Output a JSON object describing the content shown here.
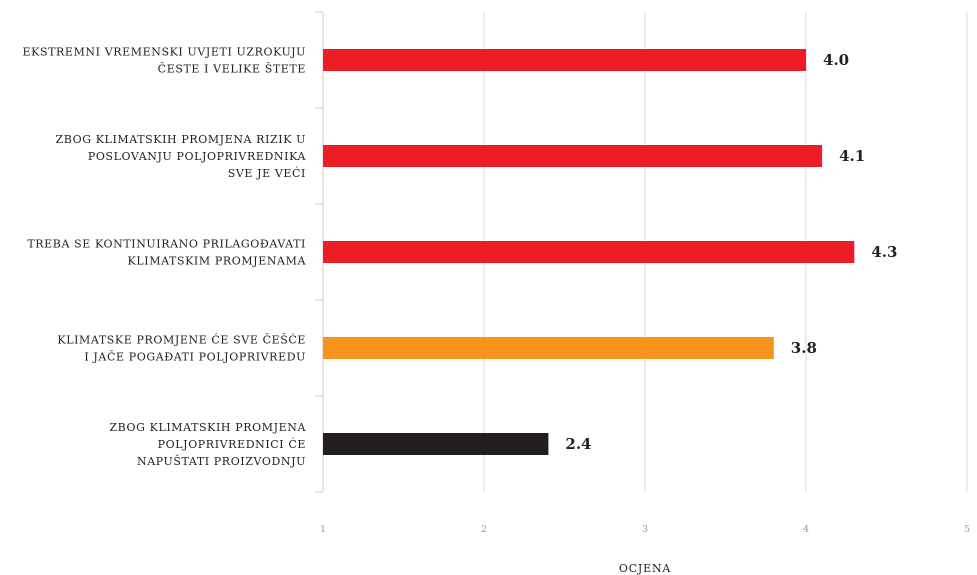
{
  "chart_data": {
    "type": "bar",
    "orientation": "horizontal",
    "categories": [
      [
        "EKSTREMNI VREMENSKI UVJETI UZROKUJU",
        "ČESTE I VELIKE ŠTETE"
      ],
      [
        "ZBOG KLIMATSKIH PROMJENA RIZIK U",
        "POSLOVANJU POLJOPRIVREDNIKA",
        "SVE JE VEĆI"
      ],
      [
        "TREBA SE KONTINUIRANO PRILAGOĐAVATI",
        "KLIMATSKIM PROMJENAMA"
      ],
      [
        "KLIMATSKE PROMJENE ĆE SVE ČEŠĆE",
        "I JAČE POGAĐATI POLJOPRIVREDU"
      ],
      [
        "ZBOG KLIMATSKIH PROMJENA",
        "POLJOPRIVREDNICI ĆE",
        "NAPUŠTATI PROIZVODNJU"
      ]
    ],
    "values": [
      4.0,
      4.1,
      4.3,
      3.8,
      2.4
    ],
    "value_labels": [
      "4.0",
      "4.1",
      "4.3",
      "3.8",
      "2.4"
    ],
    "bar_colors": [
      "#ee1c25",
      "#ee1c25",
      "#ee1c25",
      "#f7941d",
      "#231f20"
    ],
    "xlim": [
      1,
      5
    ],
    "xticks": [
      "1",
      "2",
      "3",
      "4",
      "5"
    ],
    "xlabel": "OCJENA",
    "grid": true,
    "colors": {
      "grid": "#d9d9d9",
      "axis": "#cfcfcf"
    }
  }
}
